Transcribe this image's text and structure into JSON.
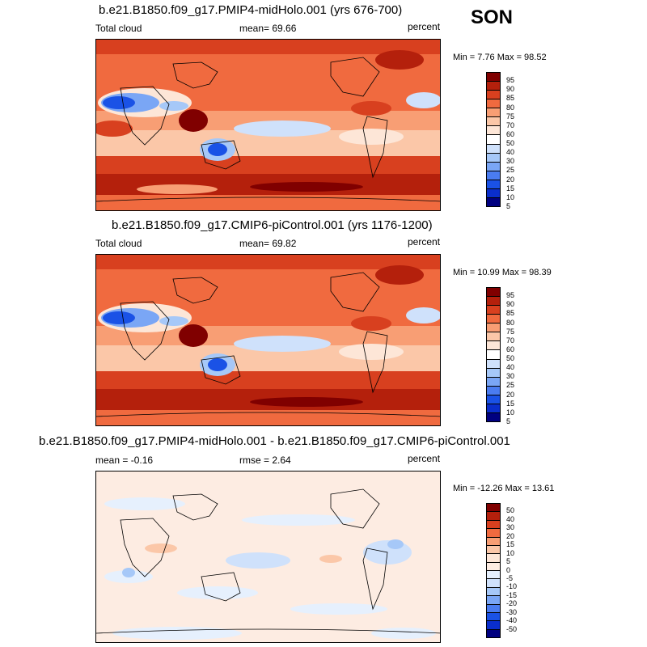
{
  "season": "SON",
  "colors": {
    "seq": [
      "#000080",
      "#0a2ecc",
      "#1a52e6",
      "#4a7cf0",
      "#7aa6f5",
      "#a6c8f8",
      "#cfe1fb",
      "#ffffff",
      "#fde6d7",
      "#fbc7a8",
      "#f89e74",
      "#f06a3f",
      "#d8401f",
      "#b4200c",
      "#800000"
    ],
    "div": [
      "#000080",
      "#0a2ecc",
      "#1a52e6",
      "#4a7cf0",
      "#7aa6f5",
      "#a6c8f8",
      "#cfe1fb",
      "#e6f0fd",
      "#fdece2",
      "#fde6d7",
      "#fbc7a8",
      "#f89e74",
      "#f06a3f",
      "#d8401f",
      "#b4200c",
      "#800000"
    ]
  },
  "panels": [
    {
      "title": "b.e21.B1850.f09_g17.PMIP4-midHolo.001 (yrs 676-700)",
      "left": "Total cloud",
      "center": "mean=  69.66",
      "right": "percent",
      "minmax": "Min =  7.76 Max =  98.52",
      "levels": [
        "95",
        "90",
        "85",
        "80",
        "75",
        "70",
        "60",
        "50",
        "40",
        "30",
        "25",
        "20",
        "15",
        "10",
        "5"
      ]
    },
    {
      "title": "b.e21.B1850.f09_g17.CMIP6-piControl.001 (yrs 1176-1200)",
      "left": "Total cloud",
      "center": "mean=  69.82",
      "right": "percent",
      "minmax": "Min =  10.99 Max =  98.39",
      "levels": [
        "95",
        "90",
        "85",
        "80",
        "75",
        "70",
        "60",
        "50",
        "40",
        "30",
        "25",
        "20",
        "15",
        "10",
        "5"
      ]
    },
    {
      "title": "b.e21.B1850.f09_g17.PMIP4-midHolo.001 - b.e21.B1850.f09_g17.CMIP6-piControl.001",
      "left": "mean =  -0.16",
      "center": "rmse =   2.64",
      "right": "percent",
      "minmax": "Min = -12.26 Max =  13.61",
      "levels": [
        "50",
        "40",
        "30",
        "20",
        "15",
        "10",
        "5",
        "0",
        "-5",
        "-10",
        "-15",
        "-20",
        "-30",
        "-40",
        "-50"
      ]
    }
  ]
}
